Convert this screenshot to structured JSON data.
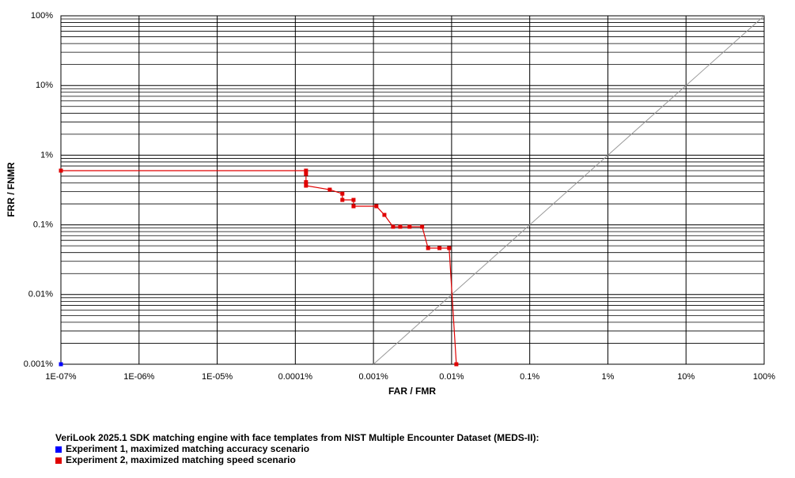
{
  "chart_data": {
    "type": "line",
    "xscale": "log",
    "yscale": "log",
    "xlabel": "FAR / FMR",
    "ylabel": "FRR / FNMR",
    "xlim": [
      1e-07,
      100
    ],
    "ylim": [
      0.001,
      100
    ],
    "xticks": [
      {
        "value": 1e-07,
        "label": "1E-07%"
      },
      {
        "value": 1e-06,
        "label": "1E-06%"
      },
      {
        "value": 1e-05,
        "label": "1E-05%"
      },
      {
        "value": 0.0001,
        "label": "0.0001%"
      },
      {
        "value": 0.001,
        "label": "0.001%"
      },
      {
        "value": 0.01,
        "label": "0.01%"
      },
      {
        "value": 0.1,
        "label": "0.1%"
      },
      {
        "value": 1,
        "label": "1%"
      },
      {
        "value": 10,
        "label": "10%"
      },
      {
        "value": 100,
        "label": "100%"
      }
    ],
    "yticks": [
      {
        "value": 0.001,
        "label": "0.001%"
      },
      {
        "value": 0.01,
        "label": "0.01%"
      },
      {
        "value": 0.1,
        "label": "0.1%"
      },
      {
        "value": 1,
        "label": "1%"
      },
      {
        "value": 10,
        "label": "10%"
      },
      {
        "value": 100,
        "label": "100%"
      }
    ],
    "grid": true,
    "diagonal": true,
    "legend_title": "VeriLook 2025.1 SDK matching engine with face templates from NIST Multiple Encounter Dataset (MEDS-II):",
    "legend": "bottom-left",
    "series": [
      {
        "name": "Experiment 1, maximized matching accuracy scenario",
        "color": "#0000ff",
        "x": [
          1e-07
        ],
        "values": [
          0.001
        ]
      },
      {
        "name": "Experiment 2, maximized matching speed scenario",
        "color": "#e00000",
        "x": [
          1e-07,
          0.000137,
          0.000137,
          0.000137,
          0.000137,
          0.000276,
          0.0004,
          0.0004,
          0.000556,
          0.000556,
          0.00109,
          0.00138,
          0.00178,
          0.0022,
          0.0029,
          0.0042,
          0.005,
          0.007,
          0.0093,
          0.0115
        ],
        "values": [
          0.6,
          0.6,
          0.54,
          0.41,
          0.365,
          0.32,
          0.28,
          0.228,
          0.228,
          0.185,
          0.185,
          0.139,
          0.094,
          0.094,
          0.094,
          0.094,
          0.0464,
          0.0464,
          0.0464,
          0.001
        ]
      }
    ]
  }
}
